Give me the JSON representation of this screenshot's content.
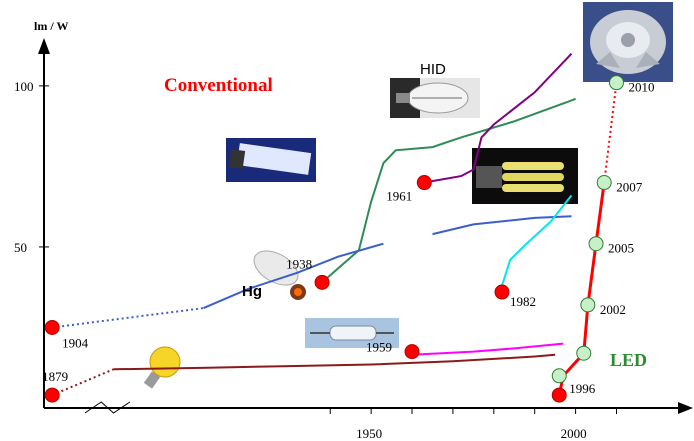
{
  "colors": {
    "conventional": "#ff0000",
    "led": "#2e8b2e",
    "incandescent": "#8b1a1a",
    "halogen": "#ff00ff",
    "fluorescent": "#2e8b57",
    "mercury": "#3a5fcd",
    "hid": "#800080",
    "cfl": "#00e5ee",
    "led_line": "#ff0000",
    "event_marker": "#ff0000",
    "led_marker": "#c8f0c8"
  },
  "labels": {
    "conventional": "Conventional",
    "led": "LED",
    "hid": "HID",
    "hg": "Hg"
  },
  "chart_data": {
    "type": "line",
    "xlabel": "",
    "ylabel": "lm / W",
    "x_ticks": [
      1950,
      2000
    ],
    "y_ticks": [
      50,
      100
    ],
    "xlim": [
      1870,
      2027
    ],
    "ylim": [
      0,
      113
    ],
    "grid": false,
    "series": [
      {
        "key": "incandescent",
        "color_key": "incandescent",
        "points": [
          [
            1887,
            12
          ],
          [
            1910,
            12.5
          ],
          [
            1930,
            13
          ],
          [
            1950,
            13.5
          ],
          [
            1970,
            14.5
          ],
          [
            1990,
            16
          ],
          [
            1995,
            16.5
          ]
        ]
      },
      {
        "key": "halogen",
        "color_key": "halogen",
        "points": [
          [
            1960,
            16.5
          ],
          [
            1975,
            17.5
          ],
          [
            1985,
            18.5
          ],
          [
            1997,
            20
          ]
        ]
      },
      {
        "key": "fluorescent",
        "color_key": "fluorescent",
        "points": [
          [
            1938,
            39
          ],
          [
            1947,
            49
          ],
          [
            1950,
            64
          ],
          [
            1953,
            76
          ],
          [
            1956,
            80
          ],
          [
            1965,
            81
          ],
          [
            1972,
            84
          ],
          [
            1985,
            89
          ],
          [
            1998,
            95
          ],
          [
            2000,
            96
          ]
        ]
      },
      {
        "key": "mercury",
        "color_key": "mercury",
        "points": [
          [
            1909,
            31
          ],
          [
            1920,
            37
          ],
          [
            1932,
            42
          ],
          [
            1942,
            47
          ],
          [
            1953,
            51
          ]
        ]
      },
      {
        "key": "mercury_2",
        "color_key": "mercury",
        "points": [
          [
            1965,
            54
          ],
          [
            1975,
            57
          ],
          [
            1990,
            59
          ],
          [
            1999,
            59.5
          ]
        ]
      },
      {
        "key": "hid",
        "color_key": "hid",
        "points": [
          [
            1963,
            70
          ],
          [
            1972,
            72
          ],
          [
            1975,
            74
          ],
          [
            1977,
            84
          ],
          [
            1980,
            88
          ],
          [
            1990,
            98
          ],
          [
            1999,
            110
          ]
        ]
      },
      {
        "key": "cfl",
        "color_key": "cfl",
        "points": [
          [
            1982,
            38
          ],
          [
            1984,
            46
          ],
          [
            1988,
            51
          ],
          [
            1994,
            58
          ],
          [
            1999,
            66
          ]
        ]
      },
      {
        "key": "led",
        "color_key": "led_line",
        "points": [
          [
            1996,
            4
          ],
          [
            1997,
            10
          ],
          [
            2002,
            17
          ],
          [
            2003,
            32
          ],
          [
            2005,
            51
          ],
          [
            2007,
            70
          ]
        ]
      }
    ],
    "dotted_links": [
      {
        "color_key": "mercury",
        "points": [
          [
            1872,
            25
          ],
          [
            1909,
            31
          ]
        ]
      },
      {
        "color_key": "incandescent",
        "points": [
          [
            1872,
            4
          ],
          [
            1887,
            12
          ]
        ]
      },
      {
        "color_key": "led_line",
        "points": [
          [
            2007,
            70
          ],
          [
            2010,
            101
          ]
        ]
      }
    ],
    "events": [
      {
        "year_label": "1879",
        "x": 1872,
        "y": 4,
        "label_pos": "above"
      },
      {
        "year_label": "1904",
        "x": 1872,
        "y": 25,
        "label_pos": "right-below"
      },
      {
        "year_label": "1938",
        "x": 1938,
        "y": 39,
        "label_pos": "left-above"
      },
      {
        "year_label": "1959",
        "x": 1960,
        "y": 17.5,
        "label_pos": "left"
      },
      {
        "year_label": "1961",
        "x": 1963,
        "y": 70,
        "label_pos": "left-below"
      },
      {
        "year_label": "1982",
        "x": 1982,
        "y": 36,
        "label_pos": "right"
      },
      {
        "year_label": "1996",
        "x": 1996,
        "y": 4,
        "label_pos": "right-above"
      }
    ],
    "led_points": [
      {
        "year_label": "",
        "x": 1996,
        "y": 10
      },
      {
        "year_label": "",
        "x": 2002,
        "y": 17
      },
      {
        "year_label": "2002",
        "x": 2003,
        "y": 32
      },
      {
        "year_label": "2005",
        "x": 2005,
        "y": 51
      },
      {
        "year_label": "2007",
        "x": 2007,
        "y": 70
      },
      {
        "year_label": "2010",
        "x": 2010,
        "y": 101
      }
    ]
  }
}
